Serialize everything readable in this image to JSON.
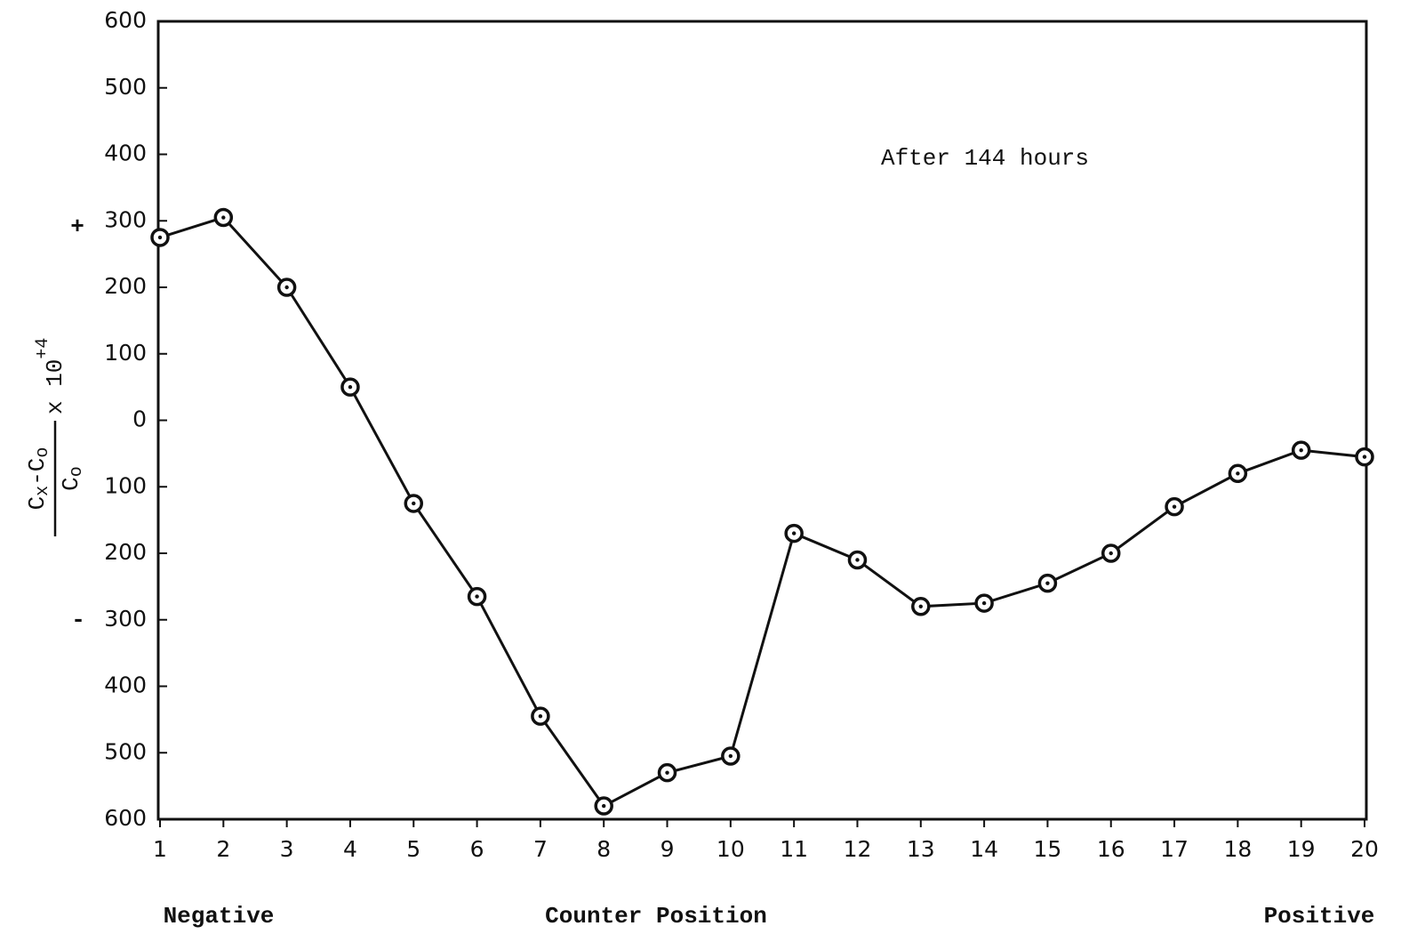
{
  "chart_data": {
    "type": "line",
    "annotation": "After 144 hours",
    "xlabel": "Counter Position",
    "x_end_labels": [
      "Negative",
      "Positive"
    ],
    "ylabel": {
      "numerator": [
        "C",
        "x",
        "-C",
        "o"
      ],
      "denominator": [
        "C",
        "o"
      ],
      "factor": "x 10",
      "exponent": "+4"
    },
    "y_signs": [
      "+",
      "-"
    ],
    "x": [
      1,
      2,
      3,
      4,
      5,
      6,
      7,
      8,
      9,
      10,
      11,
      12,
      13,
      14,
      15,
      16,
      17,
      18,
      19,
      20
    ],
    "series": [
      {
        "color": "#111111",
        "values": [
          275,
          305,
          200,
          50,
          -125,
          -265,
          -445,
          -580,
          -530,
          -505,
          -170,
          -210,
          -280,
          -275,
          -245,
          -200,
          -130,
          -80,
          -45,
          -55
        ]
      }
    ],
    "xlim": [
      1,
      20
    ],
    "xticks": [
      1,
      2,
      3,
      4,
      5,
      6,
      7,
      8,
      9,
      10,
      11,
      12,
      13,
      14,
      15,
      16,
      17,
      18,
      19,
      20
    ],
    "ylim": [
      -600,
      600
    ],
    "yticks": [
      600,
      500,
      400,
      300,
      200,
      100,
      0,
      {
        "value": -100,
        "label": "100"
      },
      {
        "value": -200,
        "label": "200"
      },
      {
        "value": -300,
        "label": "300"
      },
      {
        "value": -400,
        "label": "400"
      },
      {
        "value": -500,
        "label": "500"
      },
      {
        "value": -600,
        "label": "600"
      }
    ],
    "grid": false
  }
}
